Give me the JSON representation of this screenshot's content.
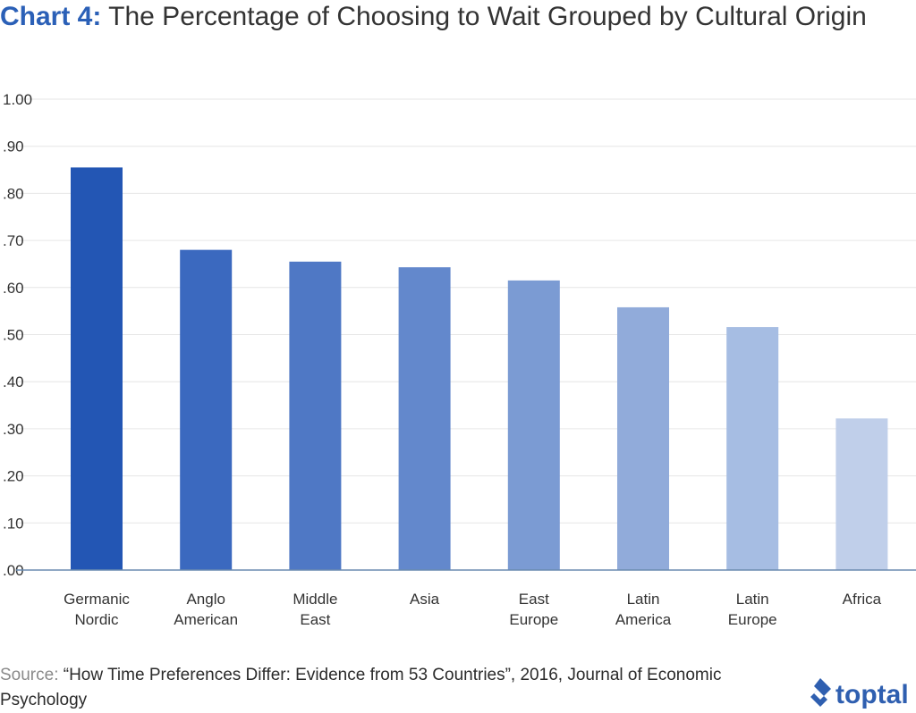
{
  "title": {
    "prefix": "Chart 4:",
    "text": " The Percentage of Choosing to Wait Grouped by Cultural Origin"
  },
  "source": {
    "label": "Source:",
    "text": " “How Time Preferences Differ: Evidence from 53 Countries”, 2016, Journal of Economic Psychology"
  },
  "logo": {
    "text": "toptal",
    "icon": "toptal-logo-icon"
  },
  "colors": {
    "title_accent": "#2b60b7",
    "bars": [
      "#2356b4",
      "#3b69bf",
      "#4f78c5",
      "#6388cc",
      "#7b9bd3",
      "#91abda",
      "#a6bde3",
      "#c0cfea"
    ],
    "axis": "#6b8bb0",
    "grid": "#e6e6e6",
    "logo": "#2f5fb0"
  },
  "chart_data": {
    "type": "bar",
    "title": "The Percentage of Choosing to Wait Grouped by Cultural Origin",
    "categories": [
      [
        "Germanic",
        "Nordic"
      ],
      [
        "Anglo",
        "American"
      ],
      [
        "Middle",
        "East"
      ],
      [
        "Asia"
      ],
      [
        "East",
        "Europe"
      ],
      [
        "Latin",
        "America"
      ],
      [
        "Latin",
        "Europe"
      ],
      [
        "Africa"
      ]
    ],
    "values": [
      0.855,
      0.68,
      0.655,
      0.643,
      0.615,
      0.558,
      0.516,
      0.322
    ],
    "ylim": [
      0,
      1
    ],
    "yticks": [
      ".00",
      ".10",
      ".20",
      ".30",
      ".40",
      ".50",
      ".60",
      ".70",
      ".80",
      ".90",
      "1.00"
    ],
    "grid": true,
    "xlabel": "",
    "ylabel": ""
  }
}
